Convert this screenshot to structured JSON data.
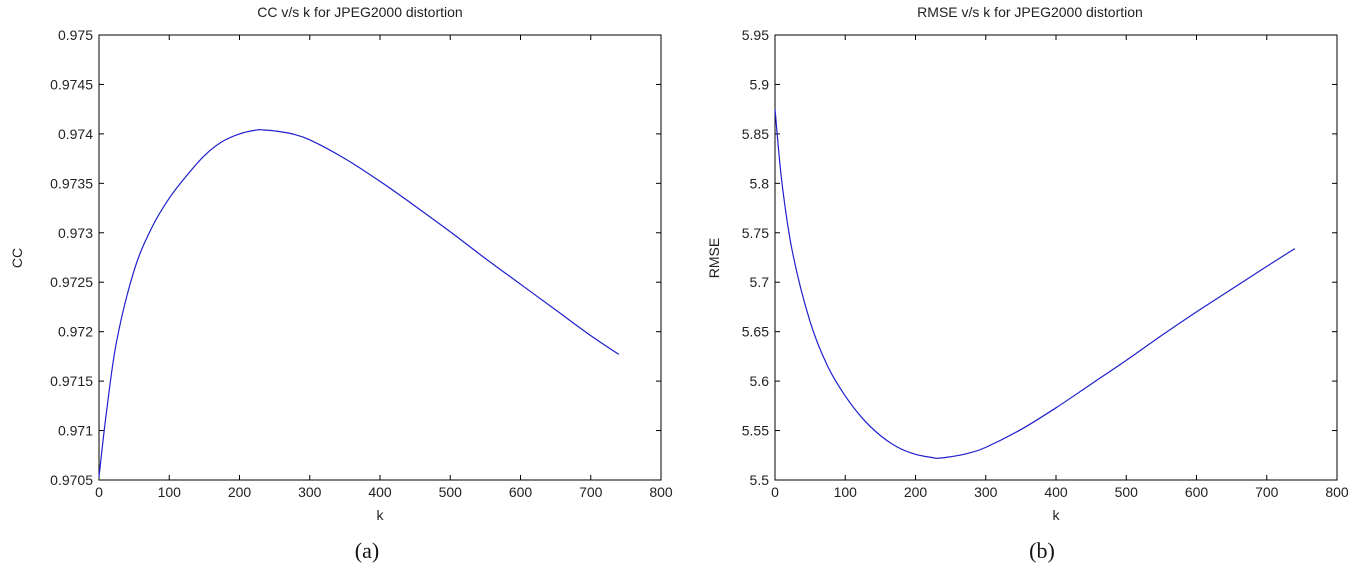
{
  "chart_data": [
    {
      "type": "line",
      "title": "CC v/s k for JPEG2000 distortion",
      "xlabel": "k",
      "ylabel": "CC",
      "xlim": [
        0,
        800
      ],
      "ylim": [
        0.9705,
        0.975
      ],
      "xticks": [
        0,
        100,
        200,
        300,
        400,
        500,
        600,
        700,
        800
      ],
      "yticks": [
        0.9705,
        0.971,
        0.9715,
        0.972,
        0.9725,
        0.973,
        0.9735,
        0.974,
        0.9745,
        0.975
      ],
      "xtick_labels": [
        "0",
        "100",
        "200",
        "300",
        "400",
        "500",
        "600",
        "700",
        "800"
      ],
      "ytick_labels": [
        "0.9705",
        "0.971",
        "0.9715",
        "0.972",
        "0.9725",
        "0.973",
        "0.9735",
        "0.974",
        "0.9745",
        "0.975"
      ],
      "grid": false,
      "caption": "(a)",
      "series": [
        {
          "color": "#1f1fd0",
          "x": [
            0,
            10,
            25,
            50,
            75,
            100,
            125,
            150,
            175,
            200,
            225,
            232,
            250,
            275,
            300,
            350,
            400,
            450,
            500,
            550,
            600,
            650,
            700,
            740
          ],
          "y": [
            0.97053,
            0.97115,
            0.9719,
            0.97262,
            0.97305,
            0.97335,
            0.97358,
            0.97378,
            0.97392,
            0.974,
            0.97404,
            0.97404,
            0.97403,
            0.974,
            0.97394,
            0.97375,
            0.97352,
            0.97327,
            0.97301,
            0.97274,
            0.97248,
            0.97222,
            0.97196,
            0.97177
          ]
        }
      ]
    },
    {
      "type": "line",
      "title": "RMSE v/s k for JPEG2000 distortion",
      "xlabel": "k",
      "ylabel": "RMSE",
      "xlim": [
        0,
        800
      ],
      "ylim": [
        5.5,
        5.95
      ],
      "xticks": [
        0,
        100,
        200,
        300,
        400,
        500,
        600,
        700,
        800
      ],
      "yticks": [
        5.5,
        5.55,
        5.6,
        5.65,
        5.7,
        5.75,
        5.8,
        5.85,
        5.9,
        5.95
      ],
      "xtick_labels": [
        "0",
        "100",
        "200",
        "300",
        "400",
        "500",
        "600",
        "700",
        "800"
      ],
      "ytick_labels": [
        "5.5",
        "5.55",
        "5.6",
        "5.65",
        "5.7",
        "5.75",
        "5.8",
        "5.85",
        "5.9",
        "5.95"
      ],
      "grid": false,
      "caption": "(b)",
      "series": [
        {
          "color": "#1f1fd0",
          "x": [
            0,
            10,
            25,
            50,
            75,
            100,
            125,
            150,
            175,
            200,
            225,
            232,
            250,
            275,
            300,
            350,
            400,
            450,
            500,
            550,
            600,
            650,
            700,
            740
          ],
          "y": [
            5.875,
            5.8,
            5.73,
            5.66,
            5.615,
            5.585,
            5.562,
            5.545,
            5.533,
            5.526,
            5.5225,
            5.522,
            5.5235,
            5.527,
            5.533,
            5.551,
            5.573,
            5.597,
            5.621,
            5.646,
            5.67,
            5.693,
            5.716,
            5.734
          ]
        }
      ]
    }
  ]
}
